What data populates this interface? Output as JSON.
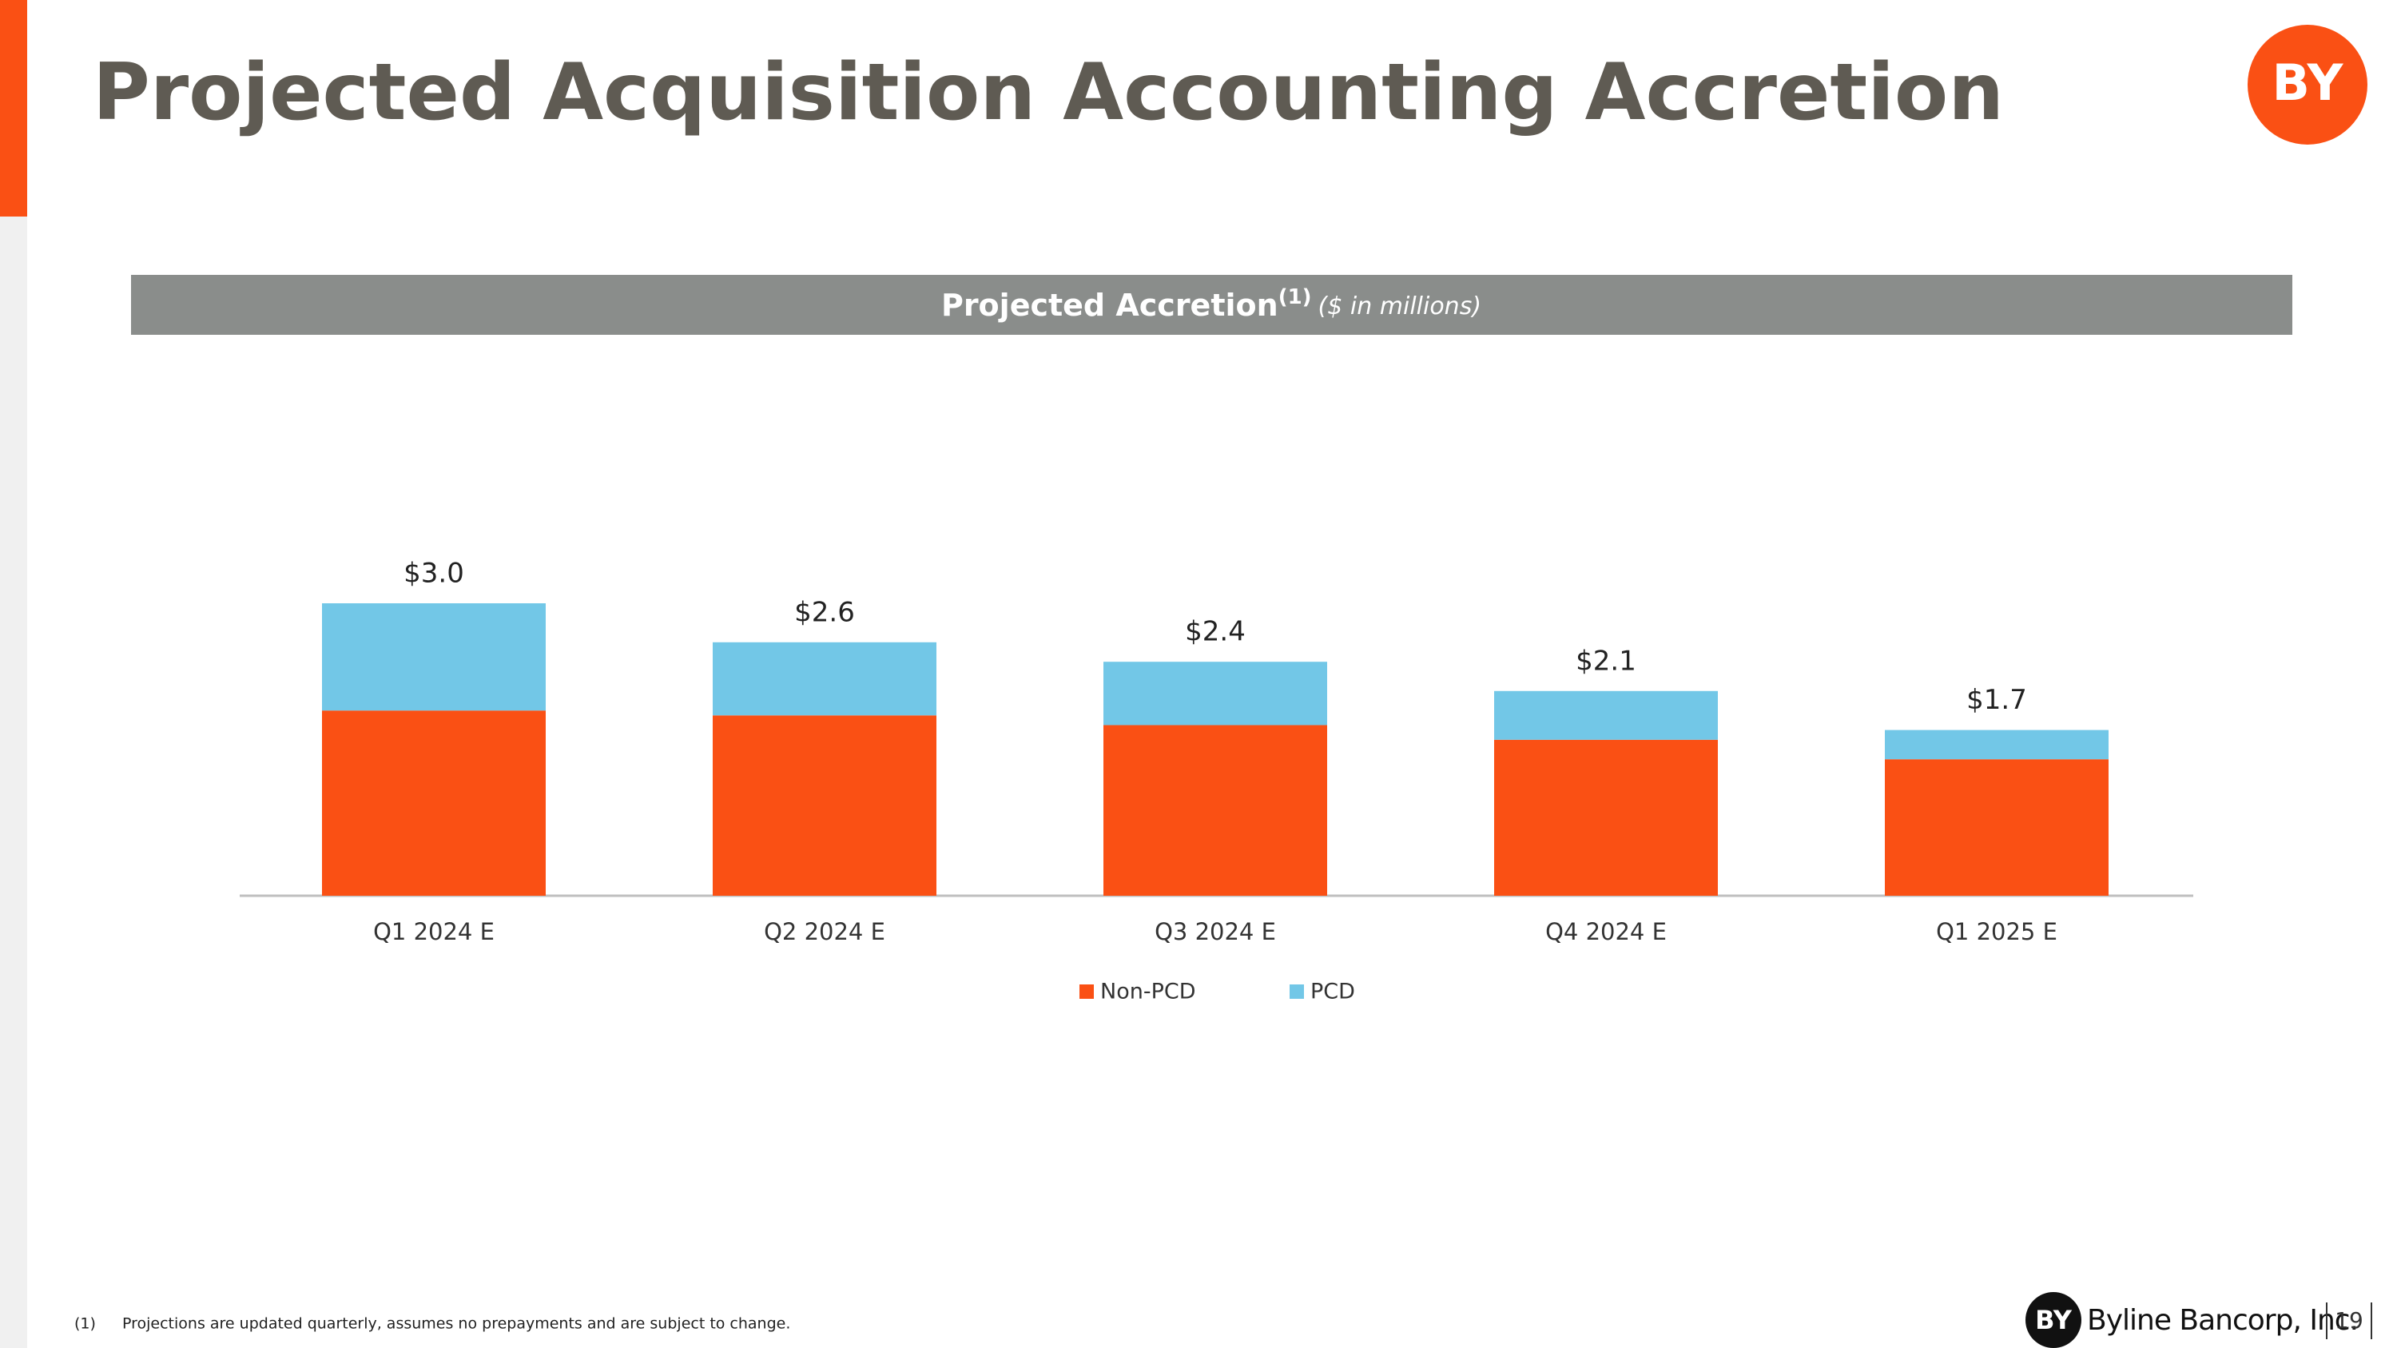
{
  "slide": {
    "title": "Projected Acquisition Accounting Accretion",
    "logo_text": "BY",
    "footnote_marker": "(1)",
    "footnote": "Projections are updated quarterly, assumes no prepayments and are subject to change.",
    "company": "Byline Bancorp, Inc.",
    "page_number": "19"
  },
  "chart_data": {
    "type": "stacked_bar",
    "title": "Projected Accretion",
    "title_superscript": "(1)",
    "subtitle": "($ in millions)",
    "categories": [
      "Q1 2024 E",
      "Q2 2024 E",
      "Q3 2024 E",
      "Q4 2024 E",
      "Q1 2025 E"
    ],
    "series": [
      {
        "name": "Non-PCD",
        "color": "#fa5014",
        "values": [
          1.9,
          1.85,
          1.75,
          1.6,
          1.4
        ]
      },
      {
        "name": "PCD",
        "color": "#72c7e7",
        "values": [
          1.1,
          0.75,
          0.65,
          0.5,
          0.3
        ]
      }
    ],
    "totals": [
      3.0,
      2.6,
      2.4,
      2.1,
      1.7
    ],
    "total_labels": [
      "$3.0",
      "$2.6",
      "$2.4",
      "$2.1",
      "$1.7"
    ],
    "legend": "bottom"
  }
}
